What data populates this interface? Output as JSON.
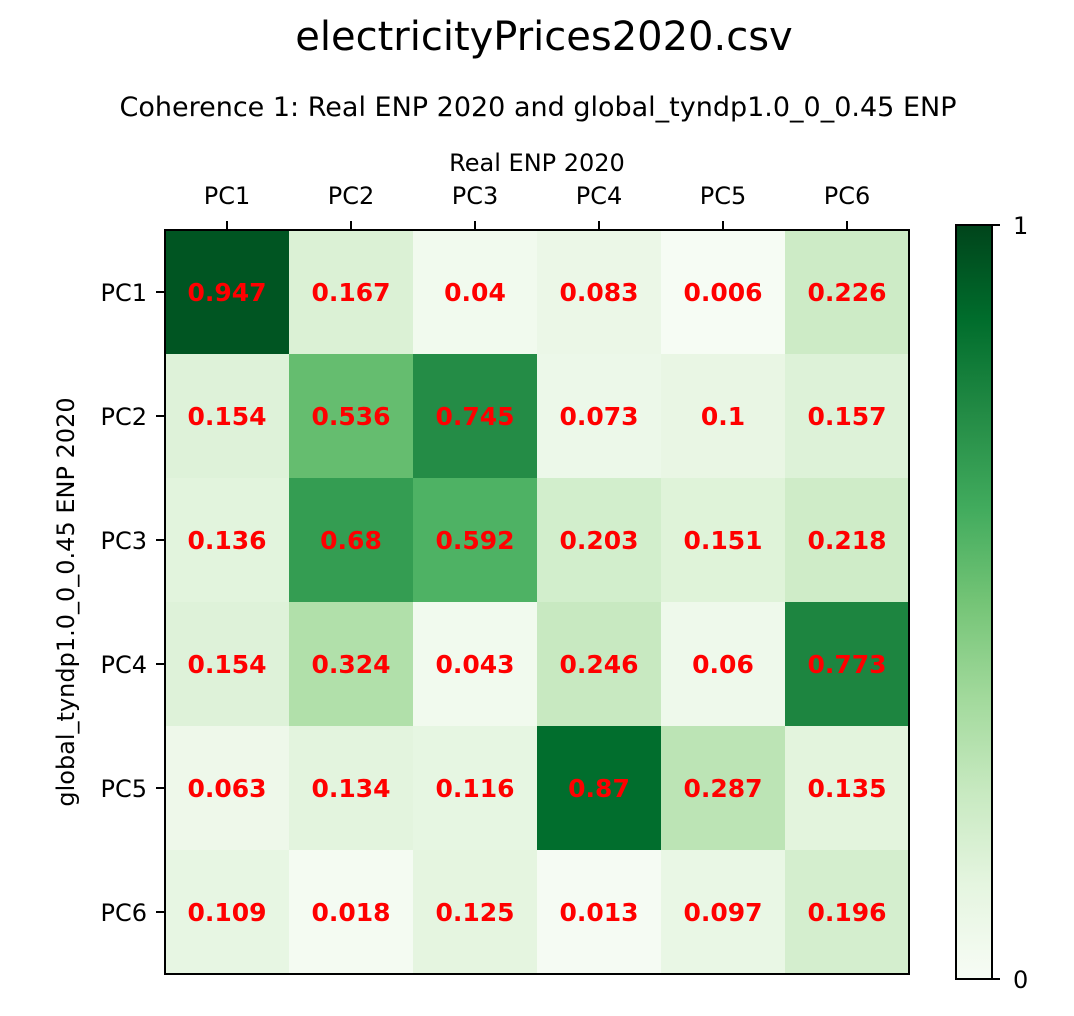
{
  "figure": {
    "suptitle": "electricityPrices2020.csv",
    "title": "Coherence 1: Real ENP 2020 and global_tyndp1.0_0_0.45 ENP"
  },
  "chart_data": {
    "type": "heatmap",
    "colormap": "Greens",
    "x_categories": [
      "PC1",
      "PC2",
      "PC3",
      "PC4",
      "PC5",
      "PC6"
    ],
    "y_categories": [
      "PC1",
      "PC2",
      "PC3",
      "PC4",
      "PC5",
      "PC6"
    ],
    "xlabel": "Real ENP 2020",
    "ylabel": "global_tyndp1.0_0_0.45 ENP 2020",
    "x_axis_position": "top",
    "values": [
      [
        0.947,
        0.167,
        0.04,
        0.083,
        0.006,
        0.226
      ],
      [
        0.154,
        0.536,
        0.745,
        0.073,
        0.1,
        0.157
      ],
      [
        0.136,
        0.68,
        0.592,
        0.203,
        0.151,
        0.218
      ],
      [
        0.154,
        0.324,
        0.043,
        0.246,
        0.06,
        0.773
      ],
      [
        0.063,
        0.134,
        0.116,
        0.87,
        0.287,
        0.135
      ],
      [
        0.109,
        0.018,
        0.125,
        0.013,
        0.097,
        0.196
      ]
    ],
    "value_range": [
      0,
      1
    ],
    "colorbar": {
      "tick_labels": [
        "1",
        "0"
      ],
      "ticks": [
        1,
        0
      ]
    },
    "annotation_color": "#ff0000"
  }
}
